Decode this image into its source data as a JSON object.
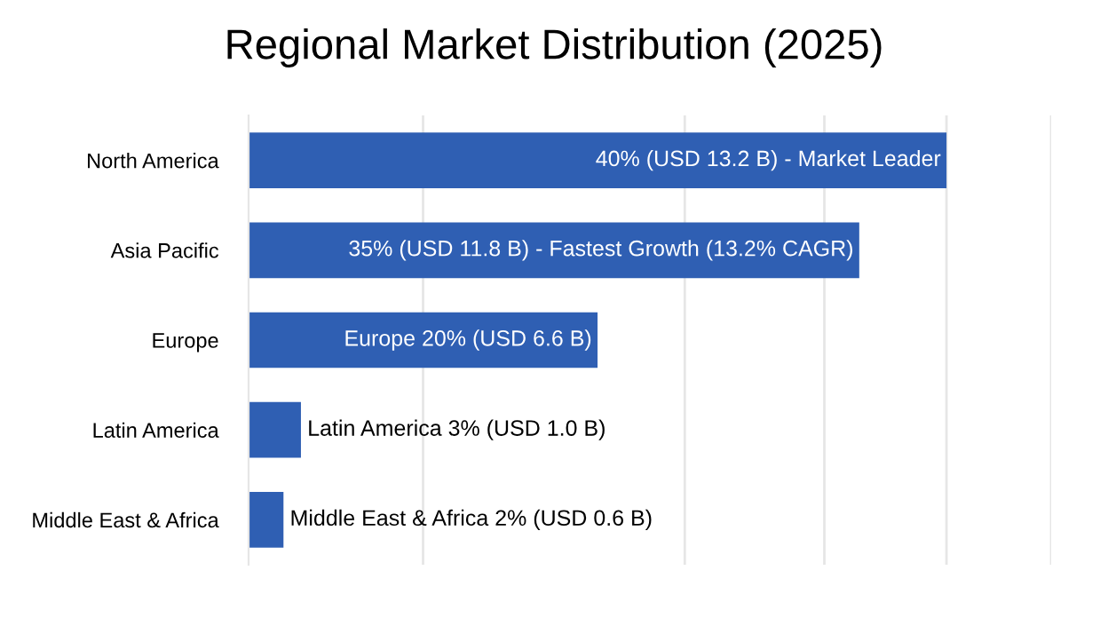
{
  "chart_data": {
    "type": "bar",
    "orientation": "horizontal",
    "title": "Regional Market Distribution (2025)",
    "categories": [
      "North America",
      "Asia Pacific",
      "Europe",
      "Latin America",
      "Middle East & Africa"
    ],
    "values": [
      40,
      35,
      20,
      3,
      2
    ],
    "value_labels": [
      "40% (USD 13.2 B) - Market Leader",
      "35% (USD 11.8 B) - Fastest Growth (13.2% CAGR)",
      "Europe 20% (USD 6.6 B)",
      "Latin America 3% (USD 1.0 B)",
      "Middle East & Africa 2% (USD 0.6 B)"
    ],
    "color": "#2f5fb3",
    "xlim": [
      0,
      46
    ],
    "xticks": [
      {
        "value": 10,
        "label": null
      },
      {
        "value": 25,
        "label": null
      },
      {
        "value": 33,
        "label": null
      },
      {
        "value": 40,
        "label": null
      },
      {
        "value": 46,
        "label": null
      }
    ],
    "tick_labels": "y",
    "grid": "x"
  }
}
